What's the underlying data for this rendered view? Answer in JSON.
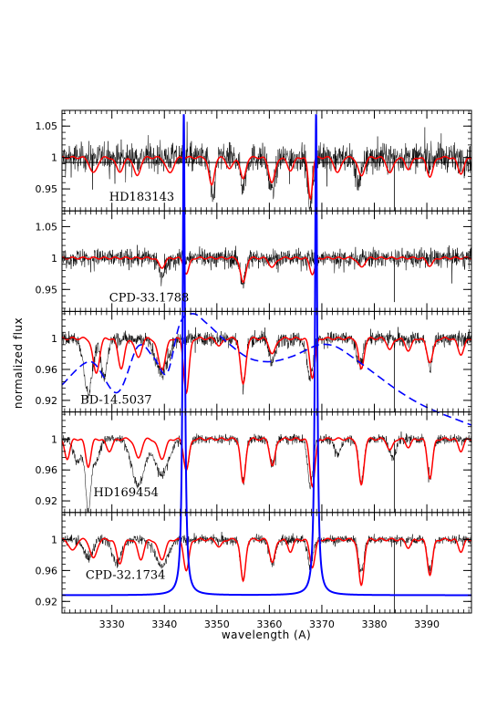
{
  "chart_data": {
    "type": "line",
    "xlabel": "wavelength (A)",
    "ylabel": "normalized flux",
    "xlim": [
      3320.5,
      3398.5
    ],
    "x_ticks": [
      3330,
      3340,
      3350,
      3360,
      3370,
      3380,
      3390
    ],
    "series_styles": {
      "observed": {
        "color": "#000000",
        "style": "solid"
      },
      "model": {
        "color": "#ff0000",
        "style": "solid"
      },
      "ism_profile": {
        "color": "#0000ff",
        "style": "solid"
      },
      "dashed_profile": {
        "color": "#0000ff",
        "style": "dashed"
      }
    },
    "panels": [
      {
        "label": "HD183143",
        "ylim": [
          0.915,
          1.075
        ],
        "y_ticks": [
          {
            "v": 0.95,
            "t": "0.95"
          },
          {
            "v": 1.0,
            "t": "1"
          },
          {
            "v": 1.05,
            "t": "1.05"
          }
        ],
        "hline": 0.992,
        "noise": 0.022,
        "model_lines": [
          [
            3326.5,
            0.975,
            0.7
          ],
          [
            3331.5,
            0.978,
            0.7
          ],
          [
            3334.8,
            0.97,
            0.6
          ],
          [
            3341.0,
            0.975,
            0.7
          ],
          [
            3349.0,
            0.955,
            0.5
          ],
          [
            3352.5,
            0.982,
            0.6
          ],
          [
            3355.0,
            0.965,
            0.5
          ],
          [
            3360.5,
            0.96,
            0.6
          ],
          [
            3364.0,
            0.98,
            0.6
          ],
          [
            3367.8,
            0.935,
            0.4
          ],
          [
            3373.0,
            0.975,
            0.6
          ],
          [
            3377.5,
            0.97,
            0.6
          ],
          [
            3383.0,
            0.975,
            0.6
          ],
          [
            3386.5,
            0.982,
            0.6
          ],
          [
            3390.6,
            0.97,
            0.6
          ],
          [
            3396.5,
            0.975,
            0.6
          ]
        ],
        "obs_lines": [
          [
            3349.2,
            0.93,
            0.4
          ],
          [
            3355.0,
            0.955,
            0.5
          ],
          [
            3360.5,
            0.945,
            0.6
          ],
          [
            3367.8,
            0.925,
            0.5
          ],
          [
            3377.0,
            0.96,
            0.6
          ]
        ],
        "spikes": [
          [
            3383.8,
            0.9
          ]
        ]
      },
      {
        "label": "CPD-33.1788",
        "ylim": [
          0.915,
          1.075
        ],
        "y_ticks": [
          {
            "v": 0.95,
            "t": "0.95"
          },
          {
            "v": 1.0,
            "t": "1"
          },
          {
            "v": 1.05,
            "t": "1.05"
          }
        ],
        "hline": null,
        "noise": 0.015,
        "model_lines": [
          [
            3339.5,
            0.985,
            0.6
          ],
          [
            3344.2,
            0.975,
            0.5
          ],
          [
            3355.0,
            0.96,
            0.5
          ],
          [
            3360.6,
            0.985,
            0.6
          ],
          [
            3368.2,
            0.975,
            0.5
          ],
          [
            3377.5,
            0.985,
            0.6
          ],
          [
            3390.6,
            0.988,
            0.6
          ]
        ],
        "obs_lines": [
          [
            3339.5,
            0.975,
            0.7
          ],
          [
            3355.0,
            0.96,
            0.5
          ]
        ],
        "spikes": [
          [
            3383.8,
            0.93
          ]
        ]
      },
      {
        "label": "BD-14.5037",
        "ylim": [
          0.905,
          1.035
        ],
        "y_ticks": [
          {
            "v": 0.92,
            "t": "0.92"
          },
          {
            "v": 0.96,
            "t": "0.96"
          },
          {
            "v": 1.0,
            "t": "1"
          }
        ],
        "hline": null,
        "noise": 0.009,
        "model_lines": [
          [
            3327.0,
            0.955,
            0.6
          ],
          [
            3331.8,
            0.962,
            0.6
          ],
          [
            3335.0,
            0.975,
            0.6
          ],
          [
            3339.5,
            0.96,
            0.7
          ],
          [
            3344.2,
            0.93,
            0.5
          ],
          [
            3350.5,
            0.99,
            0.5
          ],
          [
            3355.0,
            0.94,
            0.5
          ],
          [
            3360.6,
            0.98,
            0.6
          ],
          [
            3368.2,
            0.95,
            0.5
          ],
          [
            3377.5,
            0.96,
            0.5
          ],
          [
            3383.0,
            0.985,
            0.5
          ],
          [
            3386.5,
            0.985,
            0.6
          ],
          [
            3390.6,
            0.97,
            0.6
          ],
          [
            3396.5,
            0.98,
            0.6
          ]
        ],
        "obs_lines": [
          [
            3325.5,
            0.93,
            0.8
          ],
          [
            3328.5,
            0.95,
            0.6
          ],
          [
            3339.5,
            0.955,
            1.2
          ],
          [
            3355.0,
            0.94,
            0.5
          ],
          [
            3360.6,
            0.97,
            0.6
          ],
          [
            3367.8,
            0.95,
            0.6
          ],
          [
            3377.2,
            0.965,
            0.6
          ],
          [
            3390.6,
            0.96,
            0.5
          ]
        ],
        "spikes": [
          [
            3383.8,
            0.9
          ]
        ],
        "label_pos": [
          3324.0,
          0.916
        ]
      },
      {
        "label": "HD169454",
        "ylim": [
          0.905,
          1.035
        ],
        "y_ticks": [
          {
            "v": 0.92,
            "t": "0.92"
          },
          {
            "v": 0.96,
            "t": "0.96"
          },
          {
            "v": 1.0,
            "t": "1"
          }
        ],
        "hline": null,
        "noise": 0.006,
        "model_lines": [
          [
            3321.5,
            0.975,
            0.5
          ],
          [
            3325.5,
            0.965,
            0.5
          ],
          [
            3329.5,
            0.985,
            0.6
          ],
          [
            3335.0,
            0.975,
            0.6
          ],
          [
            3339.5,
            0.975,
            0.7
          ],
          [
            3344.2,
            0.96,
            0.5
          ],
          [
            3355.0,
            0.942,
            0.45
          ],
          [
            3360.6,
            0.965,
            0.5
          ],
          [
            3368.2,
            0.94,
            0.5
          ],
          [
            3377.5,
            0.94,
            0.5
          ],
          [
            3383.0,
            0.985,
            0.5
          ],
          [
            3386.5,
            0.99,
            0.5
          ],
          [
            3390.6,
            0.95,
            0.5
          ],
          [
            3396.5,
            0.985,
            0.5
          ]
        ],
        "obs_lines": [
          [
            3323.5,
            0.97,
            0.8
          ],
          [
            3325.5,
            0.91,
            0.5
          ],
          [
            3327.0,
            0.97,
            0.6
          ],
          [
            3335.0,
            0.94,
            1.2
          ],
          [
            3339.5,
            0.955,
            1.3
          ],
          [
            3344.2,
            0.96,
            0.5
          ],
          [
            3355.0,
            0.945,
            0.45
          ],
          [
            3360.6,
            0.965,
            0.5
          ],
          [
            3367.8,
            0.94,
            0.5
          ],
          [
            3373.0,
            0.98,
            0.6
          ],
          [
            3377.5,
            0.945,
            0.5
          ],
          [
            3383.5,
            0.975,
            0.6
          ],
          [
            3390.6,
            0.95,
            0.5
          ]
        ],
        "spikes": [
          [
            3383.8,
            0.9
          ]
        ],
        "label_pos": [
          3326.5,
          0.926
        ]
      },
      {
        "label": "CPD-32.1734",
        "ylim": [
          0.905,
          1.035
        ],
        "y_ticks": [
          {
            "v": 0.92,
            "t": "0.92"
          },
          {
            "v": 0.96,
            "t": "0.96"
          },
          {
            "v": 1.0,
            "t": "1"
          }
        ],
        "hline": null,
        "noise": 0.006,
        "model_lines": [
          [
            3322.5,
            0.985,
            0.6
          ],
          [
            3326.5,
            0.975,
            0.6
          ],
          [
            3331.5,
            0.97,
            0.6
          ],
          [
            3335.5,
            0.975,
            0.6
          ],
          [
            3339.5,
            0.975,
            0.7
          ],
          [
            3344.2,
            0.96,
            0.5
          ],
          [
            3350.5,
            0.99,
            0.5
          ],
          [
            3355.0,
            0.945,
            0.45
          ],
          [
            3360.6,
            0.97,
            0.5
          ],
          [
            3364.0,
            0.985,
            0.5
          ],
          [
            3368.2,
            0.965,
            0.5
          ],
          [
            3377.5,
            0.94,
            0.5
          ],
          [
            3386.5,
            0.99,
            0.5
          ],
          [
            3390.6,
            0.955,
            0.5
          ],
          [
            3396.5,
            0.985,
            0.5
          ]
        ],
        "obs_lines": [
          [
            3325.5,
            0.975,
            0.8
          ],
          [
            3331.0,
            0.97,
            0.8
          ],
          [
            3339.5,
            0.965,
            1.2
          ],
          [
            3355.0,
            0.95,
            0.5
          ],
          [
            3360.6,
            0.97,
            0.6
          ],
          [
            3367.8,
            0.965,
            0.5
          ],
          [
            3377.5,
            0.96,
            0.5
          ],
          [
            3390.6,
            0.96,
            0.5
          ]
        ],
        "spikes": [
          [
            3383.8,
            0.89
          ]
        ],
        "label_pos": [
          3325.0,
          0.949
        ]
      }
    ],
    "ism_profile": {
      "baseline_panel": 4,
      "baseline_flux": 0.928,
      "peaks": [
        [
          3343.7,
          0.25
        ],
        [
          3368.9,
          0.25
        ]
      ],
      "top_flux": 1.07,
      "top_panel": 0
    },
    "dashed_profile": {
      "points": [
        [
          3320.5,
          0.94
        ],
        [
          3326.0,
          0.97
        ],
        [
          3331.0,
          0.93
        ],
        [
          3335.0,
          0.99
        ],
        [
          3338.0,
          0.975
        ],
        [
          3340.5,
          0.955
        ],
        [
          3343.0,
          1.02
        ],
        [
          3345.5,
          1.032
        ],
        [
          3348.0,
          1.02
        ],
        [
          3352.0,
          0.995
        ],
        [
          3356.0,
          0.975
        ],
        [
          3360.0,
          0.97
        ],
        [
          3364.0,
          0.976
        ],
        [
          3367.0,
          0.985
        ],
        [
          3369.5,
          0.992
        ],
        [
          3372.5,
          0.99
        ],
        [
          3376.0,
          0.975
        ],
        [
          3380.0,
          0.955
        ],
        [
          3384.0,
          0.935
        ],
        [
          3388.0,
          0.918
        ],
        [
          3392.0,
          0.905
        ],
        [
          3398.5,
          0.888
        ]
      ]
    }
  }
}
